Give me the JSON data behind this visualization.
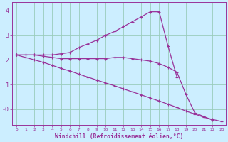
{
  "title": "",
  "xlabel": "Windchill (Refroidissement éolien,°C)",
  "ylabel": "",
  "background_color": "#cceeff",
  "line_color": "#993399",
  "grid_color": "#99ccbb",
  "x": [
    0,
    1,
    2,
    3,
    4,
    5,
    6,
    7,
    8,
    9,
    10,
    11,
    12,
    13,
    14,
    15,
    16,
    17,
    18,
    19,
    20,
    21,
    22,
    23
  ],
  "line1": [
    2.2,
    2.2,
    2.2,
    2.2,
    2.2,
    2.25,
    2.3,
    2.5,
    2.65,
    2.8,
    3.0,
    3.15,
    3.35,
    3.55,
    3.75,
    3.95,
    3.95,
    2.55,
    1.3,
    null,
    null,
    null,
    null,
    null
  ],
  "line2": [
    2.2,
    2.2,
    2.2,
    2.15,
    2.1,
    2.05,
    2.05,
    2.05,
    2.05,
    2.05,
    2.05,
    2.1,
    2.1,
    2.05,
    2.0,
    1.95,
    1.85,
    1.7,
    1.5,
    0.6,
    -0.15,
    -0.3,
    -0.45,
    null
  ],
  "line3": [
    2.2,
    2.1,
    2.0,
    1.9,
    1.78,
    1.65,
    1.55,
    1.42,
    1.3,
    1.18,
    1.06,
    0.95,
    0.82,
    0.7,
    0.58,
    0.45,
    0.33,
    0.2,
    0.07,
    -0.08,
    -0.2,
    -0.33,
    -0.42,
    -0.5
  ],
  "ylim": [
    -0.65,
    4.35
  ],
  "xlim": [
    -0.5,
    23.5
  ],
  "yticks": [
    4,
    3,
    2,
    1,
    0
  ],
  "ytick_labels": [
    "4",
    "3",
    "2",
    "1",
    "-0"
  ],
  "xticks": [
    0,
    1,
    2,
    3,
    4,
    5,
    6,
    7,
    8,
    9,
    10,
    11,
    12,
    13,
    14,
    15,
    16,
    17,
    18,
    19,
    20,
    21,
    22,
    23
  ],
  "marker": "+",
  "marker_size": 3.5,
  "linewidth": 0.9
}
